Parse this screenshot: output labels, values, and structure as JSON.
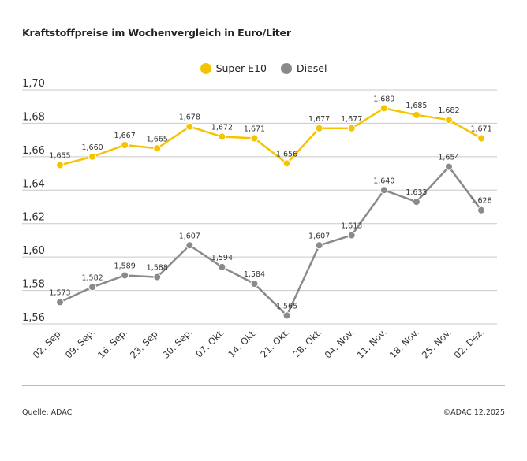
{
  "chart_data": {
    "type": "line",
    "title": "Kraftstoffpreise im Wochenvergleich in Euro/Liter",
    "categories": [
      "02. Sep.",
      "09. Sep.",
      "16. Sep.",
      "23. Sep.",
      "30. Sep.",
      "07. Okt.",
      "14. Okt.",
      "21. Okt.",
      "28. Okt.",
      "04. Nov.",
      "11. Nov.",
      "18. Nov.",
      "25. Nov.",
      "02. Dez."
    ],
    "series": [
      {
        "name": "Super E10",
        "color": "#f5c400",
        "values": [
          1.655,
          1.66,
          1.667,
          1.665,
          1.678,
          1.672,
          1.671,
          1.656,
          1.677,
          1.677,
          1.689,
          1.685,
          1.682,
          1.671
        ]
      },
      {
        "name": "Diesel",
        "color": "#8a8a8a",
        "values": [
          1.573,
          1.582,
          1.589,
          1.588,
          1.607,
          1.594,
          1.584,
          1.565,
          1.607,
          1.613,
          1.64,
          1.633,
          1.654,
          1.628
        ]
      }
    ],
    "ylim": [
      1.56,
      1.7
    ],
    "yticks": [
      "1,70",
      "1,68",
      "1,66",
      "1,64",
      "1,62",
      "1,60",
      "1,58",
      "1,56"
    ],
    "grid": true,
    "legend": "top-center",
    "decimal_separator": ","
  },
  "footer": {
    "source": "Quelle: ADAC",
    "copyright": "©ADAC 12.2025"
  }
}
